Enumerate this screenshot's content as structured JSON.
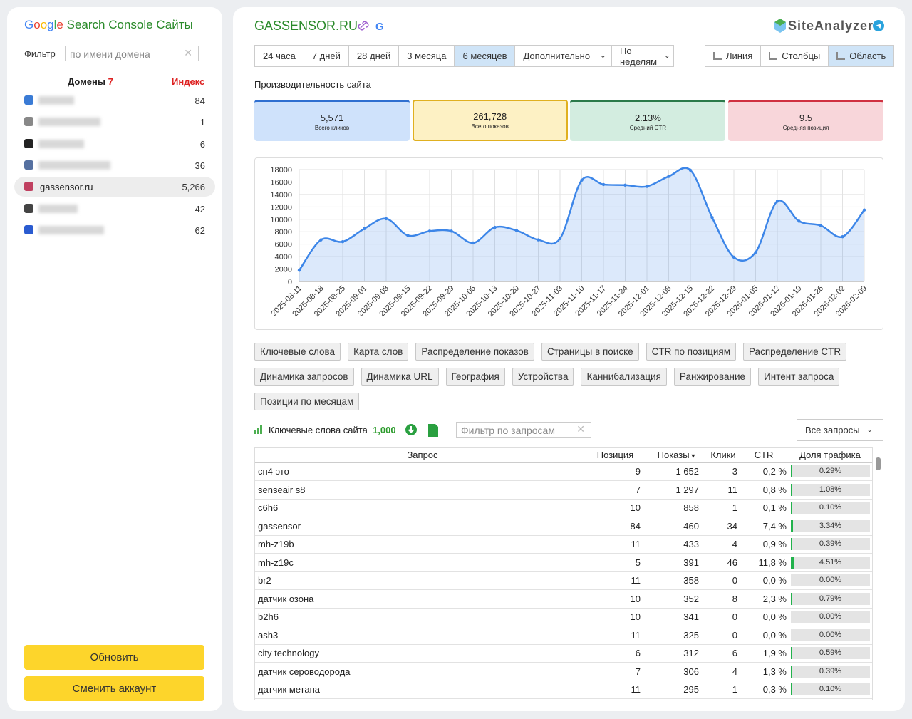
{
  "sidebar": {
    "title_brand": "Google",
    "title": "Search Console Сайты",
    "filter_label": "Фильтр",
    "filter_placeholder": "по имени домена",
    "domains_label": "Домены",
    "domains_count": "7",
    "index_label": "Индекс",
    "domains": [
      {
        "index": "84"
      },
      {
        "index": "1"
      },
      {
        "index": "6"
      },
      {
        "index": "36"
      },
      {
        "name": "gassensor.ru",
        "index": "5,266"
      },
      {
        "index": "42"
      },
      {
        "index": "62"
      }
    ],
    "buttons": [
      "Обновить",
      "Сменить аккаунт"
    ]
  },
  "header": {
    "site": "GASSENSOR.RU",
    "brand": "SiteAnalyzer"
  },
  "periods": {
    "items": [
      "24 часа",
      "7 дней",
      "28 дней",
      "3 месяца",
      "6 месяцев",
      "Дополнительно"
    ],
    "active": 4
  },
  "grouping": "По неделям",
  "views": {
    "items": [
      "Линия",
      "Столбцы",
      "Область"
    ],
    "active": 2
  },
  "section_title": "Производительность сайта",
  "kpis": [
    {
      "value": "5,571",
      "label": "Всего кликов"
    },
    {
      "value": "261,728",
      "label": "Всего показов"
    },
    {
      "value": "2.13%",
      "label": "Средний CTR"
    },
    {
      "value": "9.5",
      "label": "Средняя позиция"
    }
  ],
  "chart": {
    "type": "area",
    "color": "#3d86e8",
    "grid": true,
    "x": [
      "2025-08-11",
      "2025-08-18",
      "2025-08-25",
      "2025-09-01",
      "2025-09-08",
      "2025-09-15",
      "2025-09-22",
      "2025-09-29",
      "2025-10-06",
      "2025-10-13",
      "2025-10-20",
      "2025-10-27",
      "2025-11-03",
      "2025-11-10",
      "2025-11-17",
      "2025-11-24",
      "2025-12-01",
      "2025-12-08",
      "2025-12-15",
      "2025-12-22",
      "2025-12-29",
      "2026-01-05",
      "2026-01-12",
      "2026-01-19",
      "2026-01-26",
      "2026-02-02",
      "2026-02-09"
    ],
    "values": [
      1800,
      6700,
      6400,
      8500,
      10100,
      7400,
      8100,
      8100,
      6200,
      8700,
      8200,
      6700,
      6900,
      16300,
      15600,
      15500,
      15300,
      16900,
      17900,
      10300,
      3900,
      4700,
      12900,
      9700,
      9000,
      7200,
      11500
    ],
    "ylim": [
      0,
      18000
    ],
    "yticks": [
      0,
      2000,
      4000,
      6000,
      8000,
      10000,
      12000,
      14000,
      16000,
      18000
    ]
  },
  "tools": [
    "Ключевые слова",
    "Карта слов",
    "Распределение показов",
    "Страницы в поиске",
    "CTR по позициям",
    "Распределение CTR",
    "Динамика запросов",
    "Динамика URL",
    "География",
    "Устройства",
    "Каннибализация",
    "Ранжирование",
    "Интент запроса",
    "Позиции по месяцам"
  ],
  "keywords": {
    "title": "Ключевые слова сайта",
    "count": "1,000",
    "filter_placeholder": "Фильтр по запросам",
    "select": "Все запросы",
    "columns": [
      "Запрос",
      "Позиция",
      "Показы",
      "Клики",
      "CTR",
      "Доля трафика"
    ],
    "rows": [
      [
        "сн4 это",
        "9",
        "1 652",
        "3",
        "0,2 %",
        "0.29%"
      ],
      [
        "senseair s8",
        "7",
        "1 297",
        "11",
        "0,8 %",
        "1.08%"
      ],
      [
        "c6h6",
        "10",
        "858",
        "1",
        "0,1 %",
        "0.10%"
      ],
      [
        "gassensor",
        "84",
        "460",
        "34",
        "7,4 %",
        "3.34%"
      ],
      [
        "mh-z19b",
        "11",
        "433",
        "4",
        "0,9 %",
        "0.39%"
      ],
      [
        "mh-z19c",
        "5",
        "391",
        "46",
        "11,8 %",
        "4.51%"
      ],
      [
        "br2",
        "11",
        "358",
        "0",
        "0,0 %",
        "0.00%"
      ],
      [
        "датчик озона",
        "10",
        "352",
        "8",
        "2,3 %",
        "0.79%"
      ],
      [
        "b2h6",
        "10",
        "341",
        "0",
        "0,0 %",
        "0.00%"
      ],
      [
        "ash3",
        "11",
        "325",
        "0",
        "0,0 %",
        "0.00%"
      ],
      [
        "city technology",
        "6",
        "312",
        "6",
        "1,9 %",
        "0.59%"
      ],
      [
        "датчик сероводорода",
        "7",
        "306",
        "4",
        "1,3 %",
        "0.39%"
      ],
      [
        "датчик метана",
        "11",
        "295",
        "1",
        "0,3 %",
        "0.10%"
      ]
    ]
  }
}
